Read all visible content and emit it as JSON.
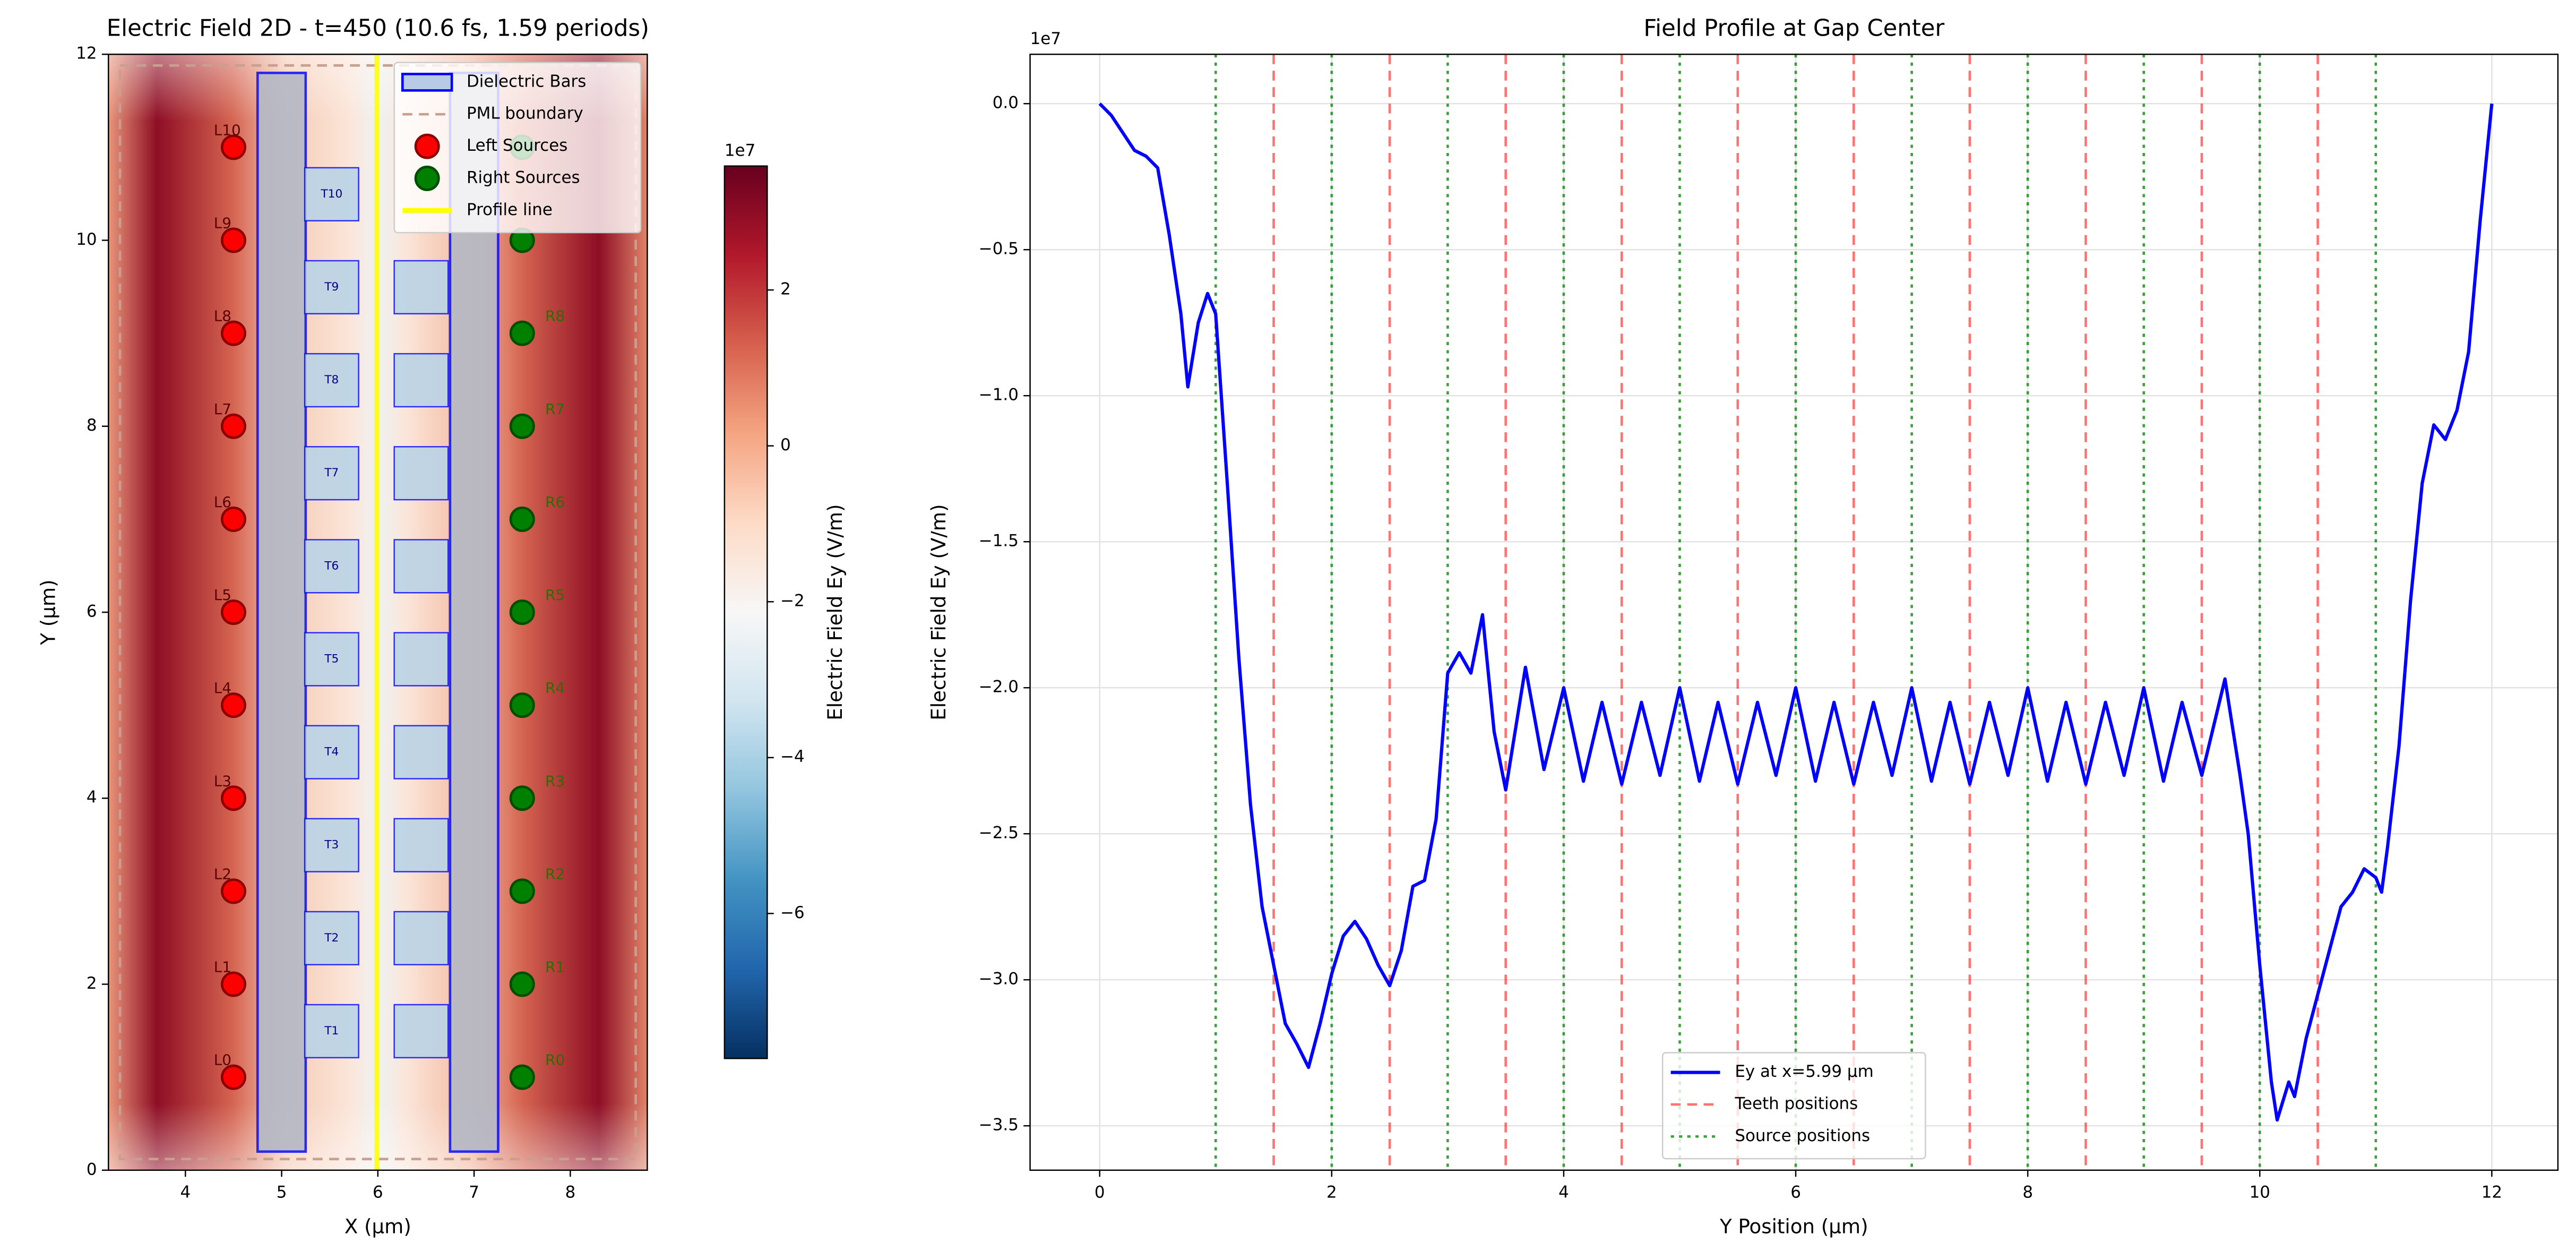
{
  "chart_data": [
    {
      "type": "field_map",
      "title": "Electric Field 2D - t=450 (10.6 fs, 1.59 periods)",
      "xlabel": "X (μm)",
      "ylabel": "Y (μm)",
      "xlim": [
        3.2,
        8.8
      ],
      "ylim": [
        0,
        12
      ],
      "xticks": [
        4,
        5,
        6,
        7,
        8
      ],
      "yticks": [
        0,
        2,
        4,
        6,
        8,
        10,
        12
      ],
      "grid": false,
      "legend": "upper right",
      "colorbar": {
        "label": "Electric Field Ey (V/m)",
        "offset": "1e7",
        "colormap": "RdBu_r",
        "lim": [
          -7.86,
          3.59
        ],
        "ticks": [
          2,
          0,
          {
            "value": -2,
            "label": "−2"
          },
          {
            "value": -4,
            "label": "−4"
          },
          {
            "value": -6,
            "label": "−6"
          }
        ]
      },
      "dielectric_bars": {
        "name": "Dielectric Bars",
        "color": "#0000ff",
        "x0": [
          4.75,
          6.75
        ],
        "x1": [
          5.25,
          7.25
        ],
        "y0": [
          0.2,
          0.2
        ],
        "y1": [
          11.8,
          11.8
        ]
      },
      "pml": {
        "name": "PML boundary",
        "color": "#c8a090",
        "x0": 3.32,
        "x1": 8.68,
        "y0": 0.12,
        "y1": 11.88
      },
      "teeth": {
        "color": "#0000ff",
        "x0": [
          5.24,
          5.24,
          5.24,
          5.24,
          5.24,
          5.24,
          5.24,
          5.24,
          5.24,
          5.24,
          6.17,
          6.17,
          6.17,
          6.17,
          6.17,
          6.17,
          6.17,
          6.17,
          6.17
        ],
        "x1": [
          5.8,
          5.8,
          5.8,
          5.8,
          5.8,
          5.8,
          5.8,
          5.8,
          5.8,
          5.8,
          6.73,
          6.73,
          6.73,
          6.73,
          6.73,
          6.73,
          6.73,
          6.73,
          6.73
        ],
        "y0": [
          1.21,
          2.21,
          3.21,
          4.21,
          5.21,
          6.21,
          7.21,
          8.21,
          9.21,
          10.21,
          1.21,
          2.21,
          3.21,
          4.21,
          5.21,
          6.21,
          7.21,
          8.21,
          9.21
        ],
        "y1": [
          1.78,
          2.78,
          3.78,
          4.78,
          5.78,
          6.78,
          7.78,
          8.78,
          9.78,
          10.78,
          1.78,
          2.78,
          3.78,
          4.78,
          5.78,
          6.78,
          7.78,
          8.78,
          9.78
        ],
        "labels": [
          "T1",
          "T2",
          "T3",
          "T4",
          "T5",
          "T6",
          "T7",
          "T8",
          "T9",
          "T10",
          null,
          null,
          null,
          null,
          null,
          null,
          null,
          null,
          null
        ]
      },
      "left_sources": {
        "name": "Left Sources",
        "color": "#ff0000",
        "x": [
          4.5,
          4.5,
          4.5,
          4.5,
          4.5,
          4.5,
          4.5,
          4.5,
          4.5,
          4.5,
          4.5
        ],
        "y": [
          1,
          2,
          3,
          4,
          5,
          6,
          7,
          8,
          9,
          10,
          11
        ],
        "labels": [
          "L0",
          "L1",
          "L2",
          "L3",
          "L4",
          "L5",
          "L6",
          "L7",
          "L8",
          "L9",
          "L10"
        ]
      },
      "right_sources": {
        "name": "Right Sources",
        "color": "#008000",
        "x": [
          7.5,
          7.5,
          7.5,
          7.5,
          7.5,
          7.5,
          7.5,
          7.5,
          7.5,
          7.5,
          7.5
        ],
        "y": [
          1,
          2,
          3,
          4,
          5,
          6,
          7,
          8,
          9,
          10,
          11
        ],
        "labels": [
          "R0",
          "R1",
          "R2",
          "R3",
          "R4",
          "R5",
          "R6",
          "R7",
          "R8",
          null,
          null
        ]
      },
      "profile_line": {
        "name": "Profile line",
        "color": "#ffff00",
        "x": 5.99
      }
    },
    {
      "type": "line",
      "title": "Field Profile at Gap Center",
      "xlabel": "Y Position (μm)",
      "ylabel": "Electric Field Ey (V/m)",
      "y_offset": "1e7",
      "xlim": [
        -0.6,
        12.57
      ],
      "ylim": [
        -3.652,
        0.169
      ],
      "xticks": [
        0,
        2,
        4,
        6,
        8,
        10,
        12
      ],
      "yticks": [
        {
          "value": 0,
          "label": "0.0"
        },
        {
          "value": -0.5,
          "label": "−0.5"
        },
        {
          "value": -1,
          "label": "−1.0"
        },
        {
          "value": -1.5,
          "label": "−1.5"
        },
        {
          "value": -2,
          "label": "−2.0"
        },
        {
          "value": -2.5,
          "label": "−2.5"
        },
        {
          "value": -3,
          "label": "−3.0"
        },
        {
          "value": -3.5,
          "label": "−3.5"
        }
      ],
      "grid": true,
      "legend": "lower center",
      "series": [
        {
          "name": "Ey at x=5.99 μm",
          "color": "#0000ff",
          "x": [
            0,
            0.1,
            0.2,
            0.3,
            0.4,
            0.5,
            0.6,
            0.7,
            0.76,
            0.85,
            0.93,
            1.0,
            1.1,
            1.2,
            1.3,
            1.4,
            1.5,
            1.6,
            1.7,
            1.8,
            1.9,
            2.0,
            2.1,
            2.2,
            2.3,
            2.4,
            2.5,
            2.6,
            2.7,
            2.8,
            2.9,
            3.0,
            3.1,
            3.2,
            3.3,
            3.4,
            3.5,
            3.67,
            3.83,
            4.0,
            4.17,
            4.33,
            4.5,
            4.67,
            4.83,
            5.0,
            5.17,
            5.33,
            5.5,
            5.67,
            5.83,
            6.0,
            6.17,
            6.33,
            6.5,
            6.67,
            6.83,
            7.0,
            7.17,
            7.33,
            7.5,
            7.67,
            7.83,
            8.0,
            8.17,
            8.33,
            8.5,
            8.67,
            8.83,
            9.0,
            9.17,
            9.33,
            9.5,
            9.7,
            9.83,
            9.9,
            10.0,
            10.1,
            10.15,
            10.25,
            10.3,
            10.4,
            10.5,
            10.6,
            10.7,
            10.8,
            10.9,
            11.0,
            11.05,
            11.1,
            11.2,
            11.3,
            11.4,
            11.5,
            11.6,
            11.7,
            11.8,
            11.9,
            12.0
          ],
          "values": [
            0,
            -0.04,
            -0.1,
            -0.16,
            -0.18,
            -0.22,
            -0.45,
            -0.72,
            -0.97,
            -0.75,
            -0.65,
            -0.72,
            -1.3,
            -1.9,
            -2.4,
            -2.75,
            -2.95,
            -3.15,
            -3.22,
            -3.3,
            -3.15,
            -2.98,
            -2.85,
            -2.8,
            -2.86,
            -2.95,
            -3.02,
            -2.9,
            -2.68,
            -2.66,
            -2.45,
            -1.95,
            -1.88,
            -1.95,
            -1.75,
            -2.15,
            -2.35,
            -1.93,
            -2.28,
            -2.0,
            -2.32,
            -2.05,
            -2.33,
            -2.05,
            -2.3,
            -2.0,
            -2.32,
            -2.05,
            -2.33,
            -2.05,
            -2.3,
            -2.0,
            -2.32,
            -2.05,
            -2.33,
            -2.05,
            -2.3,
            -2.0,
            -2.32,
            -2.05,
            -2.33,
            -2.05,
            -2.3,
            -2.0,
            -2.32,
            -2.05,
            -2.33,
            -2.05,
            -2.3,
            -2.0,
            -2.32,
            -2.05,
            -2.3,
            -1.97,
            -2.3,
            -2.5,
            -2.95,
            -3.35,
            -3.48,
            -3.35,
            -3.4,
            -3.2,
            -3.05,
            -2.9,
            -2.75,
            -2.7,
            -2.62,
            -2.65,
            -2.7,
            -2.55,
            -2.2,
            -1.7,
            -1.3,
            -1.1,
            -1.15,
            -1.05,
            -0.85,
            -0.4,
            0.0
          ]
        }
      ],
      "vlines": [
        {
          "name": "Teeth positions",
          "color": "#ff0000",
          "style": "dashed",
          "x": [
            1.5,
            2.5,
            3.5,
            4.5,
            5.5,
            6.5,
            7.5,
            8.5,
            9.5,
            10.5
          ]
        },
        {
          "name": "Source positions",
          "color": "#008000",
          "style": "dotted",
          "x": [
            1,
            2,
            3,
            4,
            5,
            6,
            7,
            8,
            9,
            10,
            11
          ]
        }
      ]
    }
  ]
}
